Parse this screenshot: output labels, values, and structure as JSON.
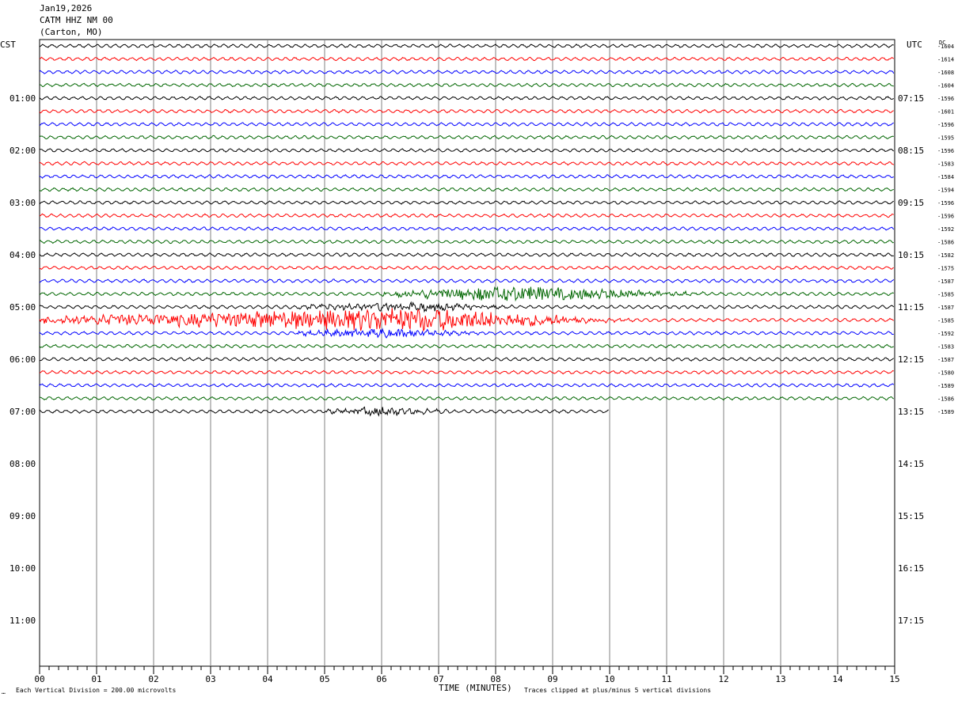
{
  "header": {
    "date": "Jan19,2026",
    "station": "CATM HHZ NM 00",
    "location": "(Carton, MO)"
  },
  "left_tz": "CST",
  "right_tz": "UTC",
  "dc_header": "DC",
  "footer": {
    "scale_note": "Each Vertical Division =  200.00 microvolts",
    "xlabel": "TIME (MINUTES)",
    "clip_note": "Traces clipped at plus/minus 5 vertical divisions",
    "corner_mark": "…"
  },
  "colors": {
    "cycle": [
      "#000000",
      "#ff0000",
      "#0000ff",
      "#006600"
    ],
    "grid": "#808080",
    "background": "#ffffff"
  },
  "chart_data": {
    "type": "line",
    "title": "CATM HHZ NM 00",
    "xlabel": "TIME (MINUTES)",
    "xlim": [
      0,
      15
    ],
    "x_ticks": [
      "00",
      "01",
      "02",
      "03",
      "04",
      "05",
      "06",
      "07",
      "08",
      "09",
      "10",
      "11",
      "12",
      "13",
      "14",
      "15"
    ],
    "traces_per_hour": 4,
    "minutes_per_trace": 15,
    "left_hour_labels": [
      "01:00",
      "02:00",
      "03:00",
      "04:00",
      "05:00",
      "06:00",
      "07:00",
      "08:00",
      "09:00",
      "10:00",
      "11:00"
    ],
    "right_hour_labels": [
      "07:15",
      "08:15",
      "09:15",
      "10:15",
      "11:15",
      "12:15",
      "13:15",
      "14:15",
      "15:15",
      "16:15",
      "17:15"
    ],
    "dc_offsets": [
      -1604,
      -1614,
      -1608,
      -1604,
      -1596,
      -1601,
      -1596,
      -1595,
      -1596,
      -1583,
      -1584,
      -1594,
      -1596,
      -1596,
      -1592,
      -1586,
      -1582,
      -1575,
      -1587,
      -1585,
      -1587,
      -1585,
      -1592,
      -1583,
      -1587,
      -1580,
      -1589,
      -1586,
      -1589
    ],
    "last_trace_end_minute": 10,
    "events": [
      {
        "trace": 19,
        "start_min": 6.0,
        "peak_min": 8.3,
        "end_min": 12.0,
        "level": "strong"
      },
      {
        "trace": 21,
        "start_min": 0.0,
        "peak_min": 6.5,
        "end_min": 10.5,
        "level": "very strong"
      },
      {
        "trace": 20,
        "start_min": 4.5,
        "peak_min": 6.5,
        "end_min": 8.5,
        "level": "moderate"
      },
      {
        "trace": 22,
        "start_min": 4.5,
        "peak_min": 6.0,
        "end_min": 8.0,
        "level": "moderate"
      },
      {
        "trace": 28,
        "start_min": 5.0,
        "peak_min": 6.0,
        "end_min": 7.5,
        "level": "moderate"
      }
    ]
  }
}
